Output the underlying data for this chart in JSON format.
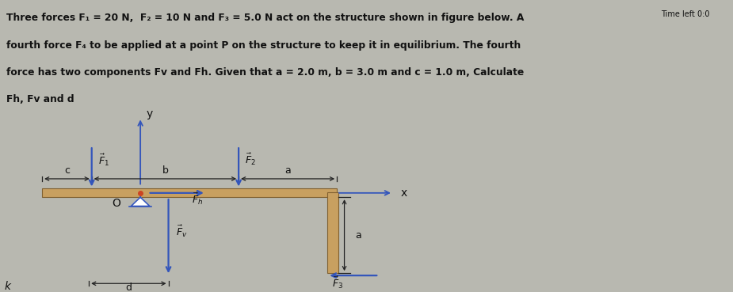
{
  "text_lines": [
    "Three forces F₁ = 20 N,  F₂ = 10 N and F₃ = 5.0 N act on the structure shown in figure below. A",
    "fourth force F₄ to be applied at a point P on the structure to keep it in equilibrium. The fourth",
    "force has two components Fv and Fh. Given that a = 2.0 m, b = 3.0 m and c = 1.0 m, Calculate",
    "Fh, Fv and d"
  ],
  "timer_text": "Time left 0:0",
  "fig_bg": "#b8b8b0",
  "text_area_bg": "#d8d4c8",
  "diagram_bg": "#cbc7bb",
  "right_bg": "#c8d8d4",
  "timer_bg": "#e8e4d8",
  "beam_color": "#c8a060",
  "beam_edge": "#806030",
  "arrow_color": "#3355bb",
  "dim_color": "#222222",
  "label_color": "#111111"
}
